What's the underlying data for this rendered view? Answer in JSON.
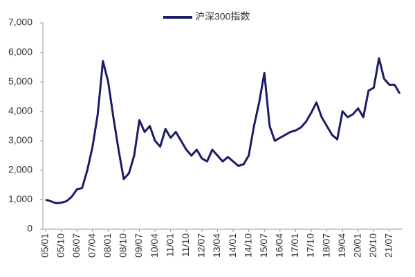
{
  "chart_data": {
    "type": "line",
    "categories": [
      "05/01",
      null,
      null,
      "05/10",
      null,
      null,
      "06/07",
      null,
      null,
      "07/04",
      null,
      null,
      "08/01",
      null,
      null,
      "08/10",
      null,
      null,
      "09/07",
      null,
      null,
      "10/04",
      null,
      null,
      "11/01",
      null,
      null,
      "11/10",
      null,
      null,
      "12/07",
      null,
      null,
      "13/04",
      null,
      null,
      "14/01",
      null,
      null,
      "14/10",
      null,
      null,
      "15/07",
      null,
      null,
      "16/04",
      null,
      null,
      "17/01",
      null,
      null,
      "17/10",
      null,
      null,
      "18/07",
      null,
      null,
      "19/04",
      null,
      null,
      "20/01",
      null,
      null,
      "20/10",
      null,
      null,
      "21/07",
      null,
      null
    ],
    "series": [
      {
        "name": "沪深300指数",
        "color": "#1b1b66",
        "values": [
          1000,
          950,
          880,
          900,
          950,
          1100,
          1350,
          1400,
          2000,
          2800,
          3900,
          5700,
          5000,
          3800,
          2700,
          1700,
          1900,
          2500,
          3700,
          3300,
          3500,
          3000,
          2800,
          3400,
          3100,
          3300,
          3000,
          2700,
          2500,
          2700,
          2400,
          2300,
          2700,
          2500,
          2300,
          2450,
          2300,
          2150,
          2200,
          2500,
          3500,
          4300,
          5300,
          3500,
          3000,
          3100,
          3200,
          3300,
          3350,
          3450,
          3650,
          3950,
          4300,
          3800,
          3500,
          3200,
          3050,
          4000,
          3800,
          3900,
          4100,
          3800,
          4700,
          4800,
          5800,
          5100,
          4900,
          4900,
          4600
        ]
      }
    ],
    "ylim": [
      0,
      7000
    ],
    "yticks": [
      0,
      {
        "value": 1000,
        "label": "1,000"
      },
      {
        "value": 2000,
        "label": "2,000"
      },
      {
        "value": 3000,
        "label": "3,000"
      },
      {
        "value": 4000,
        "label": "4,000"
      },
      {
        "value": 5000,
        "label": "5,000"
      },
      {
        "value": 6000,
        "label": "6,000"
      },
      {
        "value": 7000,
        "label": "7,000"
      }
    ],
    "legend": "top"
  }
}
